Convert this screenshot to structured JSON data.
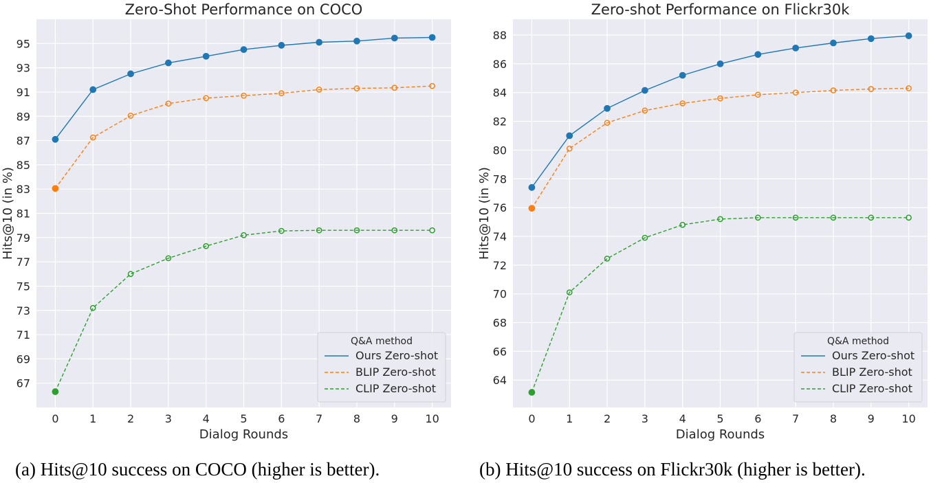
{
  "chart_data": [
    {
      "type": "line",
      "title": "Zero-Shot Performance on COCO",
      "xlabel": "Dialog Rounds",
      "ylabel": "Hits@10 (in %)",
      "x": [
        0,
        1,
        2,
        3,
        4,
        5,
        6,
        7,
        8,
        9,
        10
      ],
      "xlim": [
        -0.5,
        10.5
      ],
      "ylim": [
        65,
        97
      ],
      "yticks": [
        67,
        69,
        71,
        73,
        75,
        77,
        79,
        81,
        83,
        85,
        87,
        89,
        91,
        93,
        95
      ],
      "grid": true,
      "legend": {
        "title": "Q&A method",
        "position": "bottom-right"
      },
      "series": [
        {
          "name": "Ours Zero-shot",
          "color": "#1f77b4",
          "style": "solid",
          "marker": "filled",
          "values": [
            87.1,
            91.2,
            92.5,
            93.4,
            93.95,
            94.5,
            94.85,
            95.1,
            95.2,
            95.45,
            95.5
          ]
        },
        {
          "name": "BLIP Zero-shot",
          "color": "#ff7f0e",
          "style": "dashed",
          "marker": "hollow",
          "values": [
            83.05,
            87.25,
            89.05,
            90.05,
            90.5,
            90.7,
            90.9,
            91.2,
            91.3,
            91.35,
            91.5
          ]
        },
        {
          "name": "CLIP Zero-shot",
          "color": "#2ca02c",
          "style": "dashed",
          "marker": "hollow",
          "values": [
            66.3,
            73.2,
            76.0,
            77.3,
            78.3,
            79.2,
            79.55,
            79.6,
            79.6,
            79.6,
            79.6
          ]
        }
      ],
      "caption": "(a) Hits@10 success on COCO (higher is better)."
    },
    {
      "type": "line",
      "title": "Zero-shot Performance on Flickr30k",
      "xlabel": "Dialog Rounds",
      "ylabel": "Hits@10 (in %)",
      "x": [
        0,
        1,
        2,
        3,
        4,
        5,
        6,
        7,
        8,
        9,
        10
      ],
      "xlim": [
        -0.5,
        10.5
      ],
      "ylim": [
        62.1,
        89.1
      ],
      "yticks": [
        64,
        66,
        68,
        70,
        72,
        74,
        76,
        78,
        80,
        82,
        84,
        86,
        88
      ],
      "grid": true,
      "legend": {
        "title": "Q&A method",
        "position": "bottom-right"
      },
      "series": [
        {
          "name": "Ours Zero-shot",
          "color": "#1f77b4",
          "style": "solid",
          "marker": "filled",
          "values": [
            77.4,
            81.0,
            82.9,
            84.15,
            85.2,
            86.0,
            86.65,
            87.1,
            87.45,
            87.75,
            87.95
          ]
        },
        {
          "name": "BLIP Zero-shot",
          "color": "#ff7f0e",
          "style": "dashed",
          "marker": "hollow",
          "values": [
            75.95,
            80.1,
            81.9,
            82.75,
            83.25,
            83.6,
            83.85,
            84.0,
            84.15,
            84.25,
            84.3
          ]
        },
        {
          "name": "CLIP Zero-shot",
          "color": "#2ca02c",
          "style": "dashed",
          "marker": "hollow",
          "values": [
            63.15,
            70.1,
            72.45,
            73.9,
            74.8,
            75.2,
            75.3,
            75.3,
            75.3,
            75.3,
            75.3
          ]
        }
      ],
      "caption": "(b) Hits@10 success on Flickr30k (higher is better)."
    }
  ]
}
